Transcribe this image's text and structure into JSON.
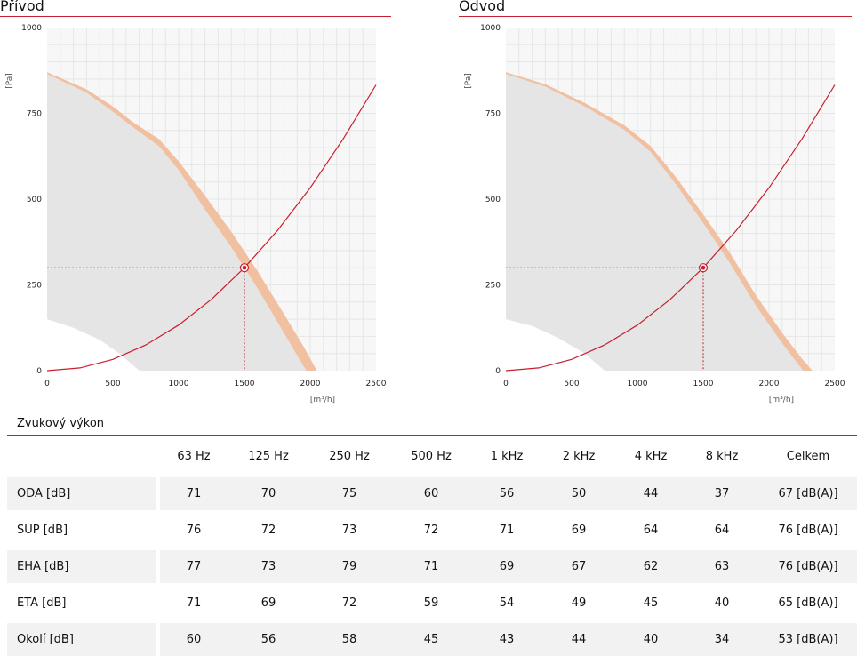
{
  "panels": [
    {
      "title": "Přívod",
      "chart_data": {
        "type": "line",
        "xlabel": "[m³/h]",
        "ylabel": "[Pa]",
        "xlim": [
          0,
          2500
        ],
        "ylim": [
          0,
          1000
        ],
        "xticks": [
          "0",
          "500",
          "1000",
          "1500",
          "2000",
          "2500"
        ],
        "yticks": [
          "0",
          "250",
          "500",
          "750",
          "1000"
        ],
        "grid": true,
        "fan_curve_upper": [
          [
            0,
            870
          ],
          [
            300,
            820
          ],
          [
            500,
            770
          ],
          [
            650,
            725
          ],
          [
            850,
            675
          ],
          [
            1000,
            610
          ],
          [
            1200,
            510
          ],
          [
            1400,
            405
          ],
          [
            1600,
            290
          ],
          [
            1800,
            165
          ],
          [
            1950,
            70
          ],
          [
            2050,
            0
          ]
        ],
        "fan_curve_lower": [
          [
            0,
            865
          ],
          [
            300,
            810
          ],
          [
            500,
            755
          ],
          [
            650,
            710
          ],
          [
            850,
            655
          ],
          [
            1000,
            585
          ],
          [
            1200,
            470
          ],
          [
            1400,
            360
          ],
          [
            1600,
            240
          ],
          [
            1800,
            110
          ],
          [
            1900,
            45
          ],
          [
            1970,
            0
          ]
        ],
        "inner_boundary": [
          [
            0,
            150
          ],
          [
            200,
            125
          ],
          [
            400,
            90
          ],
          [
            550,
            50
          ],
          [
            700,
            0
          ]
        ],
        "system_curve": [
          [
            0,
            0
          ],
          [
            250,
            8
          ],
          [
            500,
            33
          ],
          [
            750,
            75
          ],
          [
            1000,
            133
          ],
          [
            1250,
            208
          ],
          [
            1500,
            300
          ],
          [
            1750,
            408
          ],
          [
            2000,
            533
          ],
          [
            2250,
            675
          ],
          [
            2500,
            833
          ]
        ],
        "operating_point": {
          "x": 1500,
          "y": 300
        }
      }
    },
    {
      "title": "Odvod",
      "chart_data": {
        "type": "line",
        "xlabel": "[m³/h]",
        "ylabel": "[Pa]",
        "xlim": [
          0,
          2500
        ],
        "ylim": [
          0,
          1000
        ],
        "xticks": [
          "0",
          "500",
          "1000",
          "1500",
          "2000",
          "2500"
        ],
        "yticks": [
          "0",
          "250",
          "500",
          "750",
          "1000"
        ],
        "grid": true,
        "fan_curve_upper": [
          [
            0,
            870
          ],
          [
            300,
            835
          ],
          [
            600,
            780
          ],
          [
            900,
            715
          ],
          [
            1100,
            655
          ],
          [
            1300,
            560
          ],
          [
            1500,
            455
          ],
          [
            1700,
            345
          ],
          [
            1900,
            220
          ],
          [
            2100,
            110
          ],
          [
            2250,
            35
          ],
          [
            2330,
            0
          ]
        ],
        "fan_curve_lower": [
          [
            0,
            865
          ],
          [
            300,
            828
          ],
          [
            600,
            770
          ],
          [
            900,
            702
          ],
          [
            1100,
            638
          ],
          [
            1300,
            540
          ],
          [
            1500,
            430
          ],
          [
            1700,
            315
          ],
          [
            1900,
            190
          ],
          [
            2100,
            80
          ],
          [
            2200,
            30
          ],
          [
            2260,
            0
          ]
        ],
        "inner_boundary": [
          [
            0,
            150
          ],
          [
            200,
            130
          ],
          [
            400,
            95
          ],
          [
            600,
            50
          ],
          [
            750,
            0
          ]
        ],
        "system_curve": [
          [
            0,
            0
          ],
          [
            250,
            8
          ],
          [
            500,
            33
          ],
          [
            750,
            75
          ],
          [
            1000,
            133
          ],
          [
            1250,
            208
          ],
          [
            1500,
            300
          ],
          [
            1750,
            408
          ],
          [
            2000,
            533
          ],
          [
            2250,
            675
          ],
          [
            2500,
            833
          ]
        ],
        "operating_point": {
          "x": 1500,
          "y": 300
        }
      }
    }
  ],
  "sound": {
    "title": "Zvukový výkon",
    "columns": [
      "63 Hz",
      "125 Hz",
      "250 Hz",
      "500 Hz",
      "1 kHz",
      "2 kHz",
      "4 kHz",
      "8 kHz",
      "Celkem"
    ],
    "rows": [
      {
        "label": "ODA [dB]",
        "values": [
          "71",
          "70",
          "75",
          "60",
          "56",
          "50",
          "44",
          "37",
          "67 [dB(A)]"
        ]
      },
      {
        "label": "SUP [dB]",
        "values": [
          "76",
          "72",
          "73",
          "72",
          "71",
          "69",
          "64",
          "64",
          "76 [dB(A)]"
        ]
      },
      {
        "label": "EHA [dB]",
        "values": [
          "77",
          "73",
          "79",
          "71",
          "69",
          "67",
          "62",
          "63",
          "76 [dB(A)]"
        ]
      },
      {
        "label": "ETA [dB]",
        "values": [
          "71",
          "69",
          "72",
          "59",
          "54",
          "49",
          "45",
          "40",
          "65 [dB(A)]"
        ]
      },
      {
        "label": "Okolí [dB]",
        "values": [
          "60",
          "56",
          "58",
          "45",
          "43",
          "44",
          "40",
          "34",
          "53 [dB(A)]"
        ]
      }
    ]
  },
  "colors": {
    "accent": "#c8202f",
    "fan_band": "#f0c0a0",
    "area": "#e5e5e5",
    "plot_bg": "#f7f7f7",
    "grid": "#e6e6e6"
  }
}
